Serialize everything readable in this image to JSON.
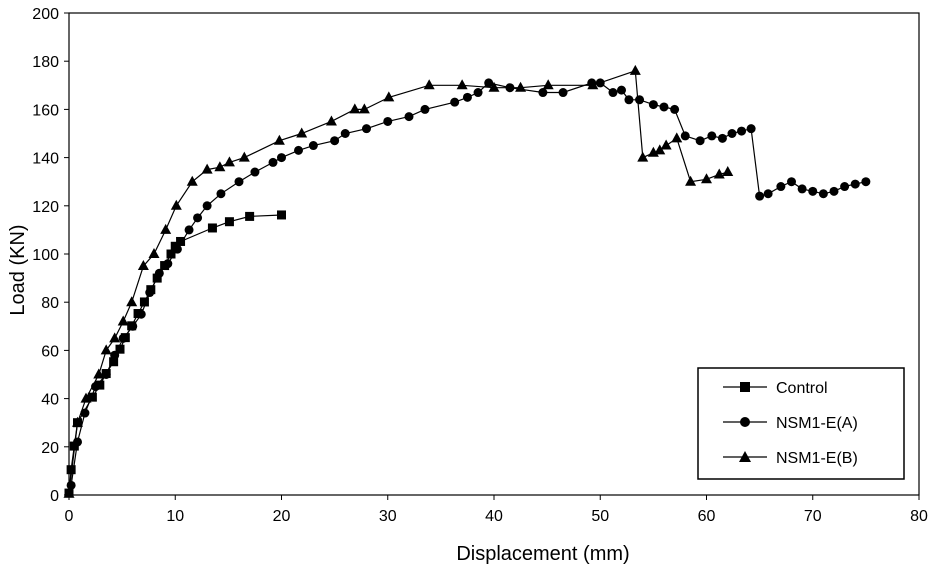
{
  "chart_data": {
    "type": "line",
    "xlabel": "Displacement (mm)",
    "ylabel": "Load (KN)",
    "xlim": [
      0,
      80
    ],
    "ylim": [
      0,
      200
    ],
    "xticks": [
      0,
      10,
      20,
      30,
      40,
      50,
      60,
      70,
      80
    ],
    "yticks": [
      0,
      20,
      40,
      60,
      80,
      100,
      120,
      140,
      160,
      180,
      200
    ],
    "grid": false,
    "legend_position": "bottom-right",
    "series": [
      {
        "name": "Control",
        "marker": "square",
        "color": "#000000",
        "x": [
          0.0,
          0.2,
          0.5,
          0.8,
          2.2,
          2.9,
          3.5,
          4.2,
          4.8,
          5.3,
          5.9,
          6.5,
          7.1,
          7.7,
          8.3,
          9.0,
          9.6,
          10.0,
          10.5,
          13.5,
          15.1,
          17.0,
          20.0
        ],
        "y": [
          0.8,
          10.5,
          20.3,
          30.0,
          40.6,
          45.6,
          50.4,
          55.3,
          60.5,
          65.3,
          70.2,
          75.3,
          80.1,
          85.2,
          90.0,
          95.2,
          100.0,
          103.2,
          105.2,
          110.8,
          113.4,
          115.6,
          116.2
        ]
      },
      {
        "name": "NSM1-E(A)",
        "marker": "circle",
        "color": "#000000",
        "x": [
          0.2,
          0.8,
          1.5,
          2.5,
          3.5,
          4.3,
          5.1,
          6.0,
          6.8,
          7.6,
          8.5,
          9.3,
          10.2,
          11.3,
          12.1,
          13.0,
          14.3,
          16.0,
          17.5,
          19.2,
          20.0,
          21.6,
          23.0,
          25.0,
          26.0,
          28.0,
          30.0,
          32.0,
          33.5,
          36.3,
          37.5,
          38.5,
          39.5,
          41.5,
          44.6,
          46.5,
          49.2,
          50.0,
          51.2,
          52.0,
          52.7,
          53.7,
          55.0,
          56.0,
          57.0,
          58.0,
          59.4,
          60.5,
          61.5,
          62.4,
          63.3,
          64.2,
          65.0,
          65.8,
          67.0,
          68.0,
          69.0,
          70.0,
          71.0,
          72.0,
          73.0,
          74.0,
          75.0
        ],
        "y": [
          4.0,
          22.0,
          34.0,
          45.0,
          50.0,
          58.0,
          65.0,
          70.0,
          75.0,
          84.0,
          92.0,
          96.0,
          102.0,
          110.0,
          115.0,
          120.0,
          125.0,
          130.0,
          134.0,
          138.0,
          140.0,
          143.0,
          145.0,
          147.0,
          150.0,
          152.0,
          155.0,
          157.0,
          160.0,
          163.0,
          165.0,
          167.0,
          171.0,
          169.0,
          167.0,
          167.0,
          171.0,
          171.0,
          167.0,
          168.0,
          164.0,
          164.0,
          162.0,
          161.0,
          160.0,
          149.0,
          147.0,
          149.0,
          148.0,
          150.0,
          151.0,
          152.0,
          124.0,
          125.0,
          128.0,
          130.0,
          127.0,
          126.0,
          125.0,
          126.0,
          128.0,
          129.0,
          130.0
        ]
      },
      {
        "name": "NSM1-E(B)",
        "marker": "triangle",
        "color": "#000000",
        "x": [
          0.0,
          0.8,
          1.6,
          2.8,
          3.5,
          4.3,
          5.1,
          5.9,
          7.0,
          8.0,
          9.1,
          10.1,
          11.6,
          13.0,
          14.2,
          15.1,
          16.5,
          19.8,
          21.9,
          24.7,
          26.9,
          27.8,
          30.1,
          33.9,
          37.0,
          40.0,
          42.5,
          45.1,
          49.3,
          53.3,
          54.0,
          55.0,
          55.6,
          56.2,
          57.2,
          58.5,
          60.0,
          61.2,
          62.0
        ],
        "y": [
          0.5,
          30.0,
          40.0,
          50.0,
          60.0,
          65.0,
          72.0,
          80.0,
          95.0,
          100.0,
          110.0,
          120.0,
          130.0,
          135.0,
          136.0,
          138.0,
          140.0,
          147.0,
          150.0,
          155.0,
          160.0,
          160.0,
          165.0,
          170.0,
          170.0,
          169.0,
          169.0,
          170.0,
          170.0,
          176.0,
          140.0,
          142.0,
          143.0,
          145.0,
          148.0,
          130.0,
          131.0,
          133.0,
          134.0
        ]
      }
    ]
  }
}
